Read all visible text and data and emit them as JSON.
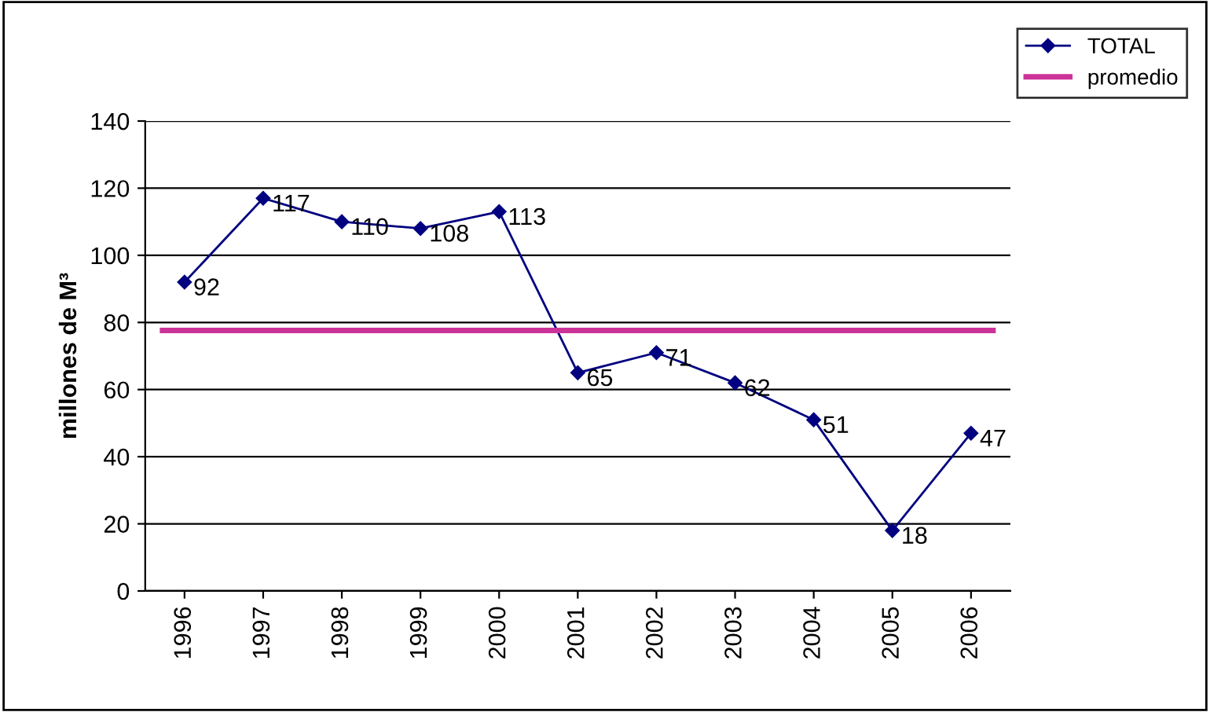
{
  "chart_data": {
    "type": "line",
    "ylabel": "millones de M³",
    "categories": [
      "1996",
      "1997",
      "1998",
      "1999",
      "2000",
      "2001",
      "2002",
      "2003",
      "2004",
      "2005",
      "2006"
    ],
    "series": [
      {
        "name": "TOTAL",
        "color": "#000080",
        "values": [
          92,
          117,
          110,
          108,
          113,
          65,
          71,
          62,
          51,
          18,
          47
        ]
      }
    ],
    "ref_lines": [
      {
        "axis": "y",
        "value": 77.6,
        "label": "promedio",
        "color": "#cc3399"
      }
    ],
    "ylim": [
      0,
      140
    ],
    "yticks": [
      0,
      20,
      40,
      60,
      80,
      100,
      120,
      140
    ],
    "grid": "y",
    "legend": "top right",
    "marker": "diamond",
    "line_style": "solid",
    "data_labels": true
  }
}
